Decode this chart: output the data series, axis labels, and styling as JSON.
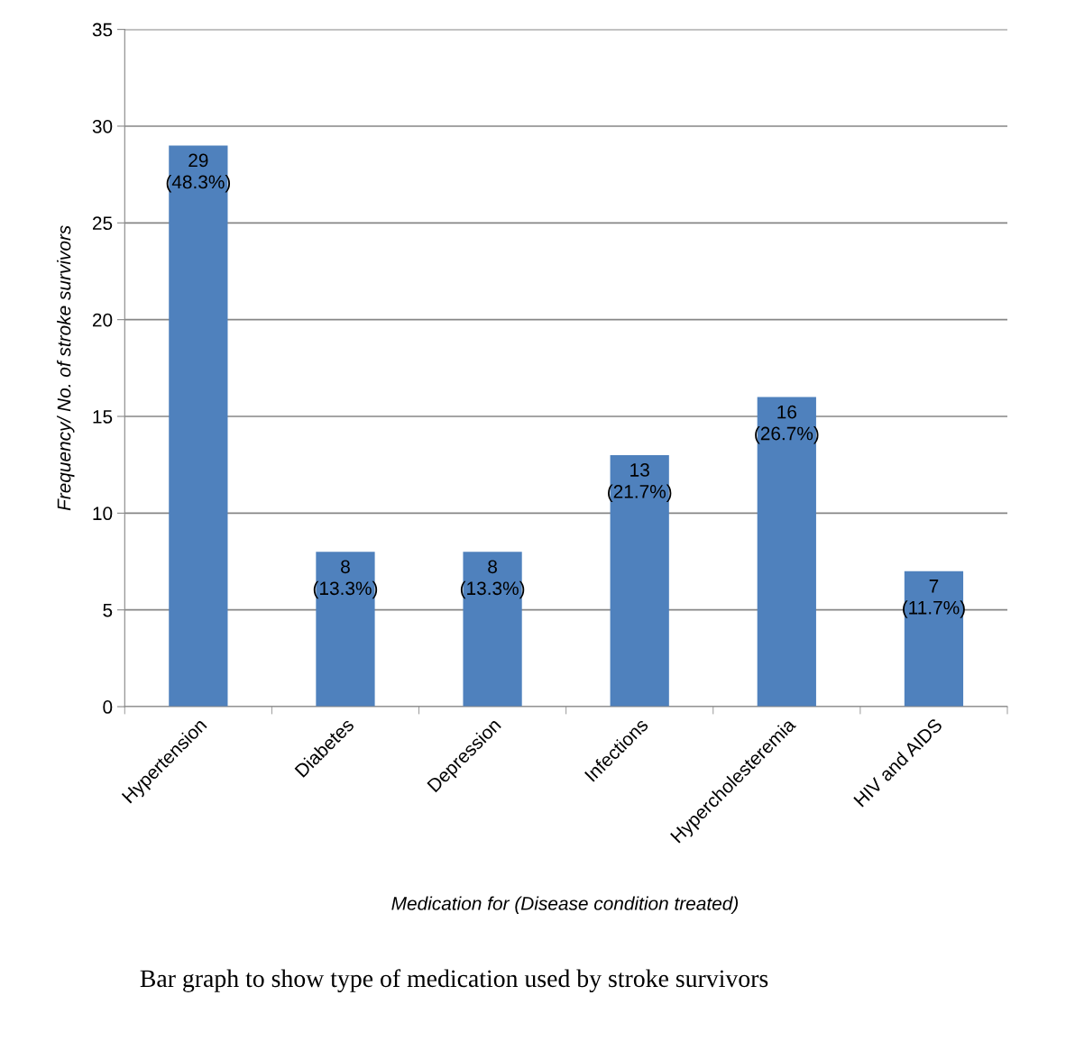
{
  "chart_data": {
    "type": "bar",
    "categories": [
      "Hypertension",
      "Diabetes",
      "Depression",
      "Infections",
      "Hypercholesteremia",
      "HIV and AIDS"
    ],
    "values": [
      29,
      8,
      8,
      13,
      16,
      7
    ],
    "value_labels": [
      "29\n(48.3%)",
      "8\n(13.3%)",
      "8\n(13.3%)",
      "13\n(21.7%)",
      "16\n(26.7%)",
      "7\n(11.7%)"
    ],
    "color": "#4f81bd",
    "xlabel": "Medication for (Disease condition treated)",
    "ylabel": "Frequency/ No. of stroke survivors",
    "ylim": [
      0,
      35
    ],
    "yticks": [
      0,
      5,
      10,
      15,
      20,
      25,
      30,
      35
    ],
    "grid": "y",
    "annotations": [
      "Bar graph to show type of medication used by stroke survivors"
    ]
  }
}
